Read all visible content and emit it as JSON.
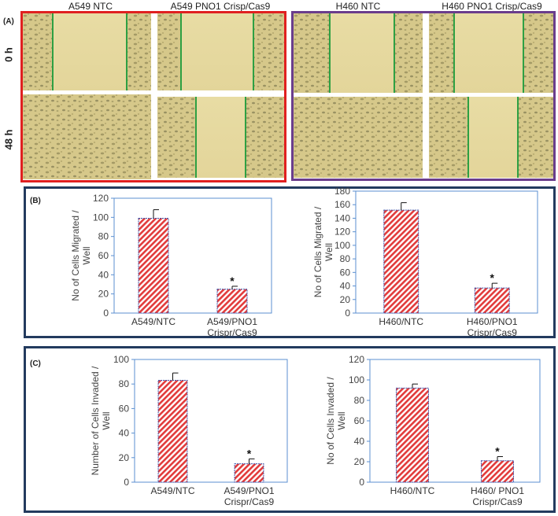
{
  "panel_a": {
    "letter": "(A)",
    "columns": [
      "A549 NTC",
      "A549 PNO1 Crisp/Cas9",
      "H460 NTC",
      "H460 PNO1 Crisp/Cas9"
    ],
    "rows": [
      "0 h",
      "48 h"
    ],
    "colors": {
      "frame_left": "#e02020",
      "frame_right": "#6a3d8c",
      "wound_line": "#2ea043",
      "photo_bg": "#dccf93"
    }
  },
  "panel_b": {
    "letter": "(B)"
  },
  "panel_c": {
    "letter": "(C)"
  },
  "chart_data": [
    {
      "type": "bar",
      "panel": "B",
      "categories": [
        "A549/NTC",
        "A549/PNO1 Crispr/Cas9"
      ],
      "values": [
        99,
        25
      ],
      "errors": [
        9,
        3
      ],
      "significance": [
        "",
        "*"
      ],
      "ylabel": "No of Cells Migrated / Well",
      "ylim": [
        0,
        120
      ],
      "yticks": [
        0,
        20,
        40,
        60,
        80,
        100,
        120
      ]
    },
    {
      "type": "bar",
      "panel": "B",
      "categories": [
        "H460/NTC",
        "H460/PNO1 Crispr/Cas9"
      ],
      "values": [
        152,
        37
      ],
      "errors": [
        11,
        7
      ],
      "significance": [
        "",
        "*"
      ],
      "ylabel": "No of Cells Migrated / Well",
      "ylim": [
        0,
        180
      ],
      "yticks": [
        0,
        20,
        40,
        60,
        80,
        100,
        120,
        140,
        160,
        180
      ]
    },
    {
      "type": "bar",
      "panel": "C",
      "categories": [
        "A549/NTC",
        "A549/PNO1 Crispr/Cas9"
      ],
      "values": [
        83,
        15
      ],
      "errors": [
        6,
        4
      ],
      "significance": [
        "",
        "*"
      ],
      "ylabel": "Number of Cells Invaded / Well",
      "ylim": [
        0,
        100
      ],
      "yticks": [
        0,
        20,
        40,
        60,
        80,
        100
      ]
    },
    {
      "type": "bar",
      "panel": "C",
      "categories": [
        "H460/NTC",
        "H460/ PNO1 Crispr/Cas9"
      ],
      "values": [
        92,
        21
      ],
      "errors": [
        4,
        4
      ],
      "significance": [
        "",
        "*"
      ],
      "ylabel": "No of Cells Invaded / Well",
      "ylim": [
        0,
        120
      ],
      "yticks": [
        0,
        20,
        40,
        60,
        80,
        100,
        120
      ]
    }
  ],
  "style": {
    "bar_fill": "#e23b3b",
    "bar_stroke": "#3a4fa8",
    "axis_color": "#5b8fd0",
    "box_border": "#233b5e"
  }
}
